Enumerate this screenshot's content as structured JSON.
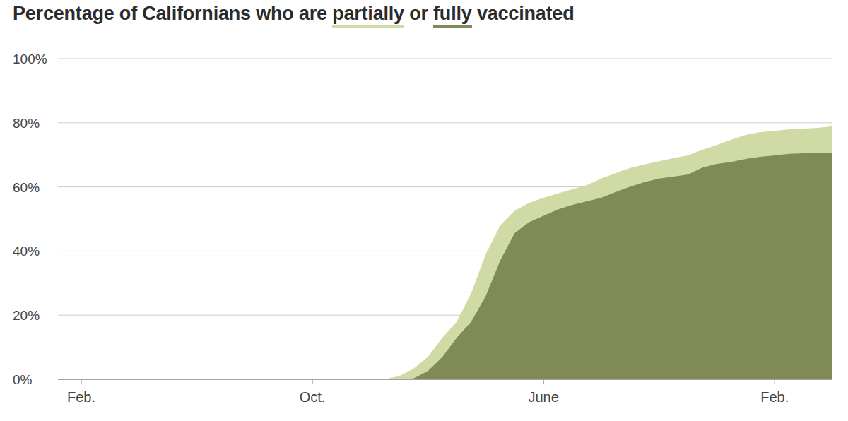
{
  "chart_data": {
    "type": "area",
    "title": "Percentage of Californians who are partially or fully vaccinated",
    "categories": [
      "Feb.",
      null,
      null,
      null,
      null,
      null,
      null,
      null,
      null,
      null,
      null,
      null,
      null,
      null,
      null,
      null,
      "Oct.",
      null,
      null,
      null,
      null,
      null,
      null,
      null,
      null,
      null,
      null,
      null,
      null,
      null,
      null,
      null,
      "June",
      null,
      null,
      null,
      null,
      null,
      null,
      null,
      null,
      null,
      null,
      null,
      null,
      null,
      null,
      null,
      "Feb.",
      null,
      null,
      null,
      null
    ],
    "series": [
      {
        "name": "partially",
        "color": "#d0daa4",
        "values": [
          0,
          0,
          0,
          0,
          0,
          0,
          0,
          0,
          0,
          0,
          0,
          0,
          0,
          0,
          0,
          0,
          0,
          0,
          0,
          0,
          0,
          0,
          1,
          3.3,
          7,
          13,
          18,
          27,
          39,
          48,
          52.6,
          55,
          56.6,
          58,
          59.3,
          60.6,
          62.6,
          64.3,
          65.9,
          67,
          68,
          69,
          69.8,
          71.6,
          73.1,
          74.7,
          76.2,
          77.1,
          77.5,
          78,
          78.2,
          78.4,
          78.9
        ]
      },
      {
        "name": "fully",
        "color": "#7f8a55",
        "values": [
          0,
          0,
          0,
          0,
          0,
          0,
          0,
          0,
          0,
          0,
          0,
          0,
          0,
          0,
          0,
          0,
          0,
          0,
          0,
          0,
          0,
          0,
          0,
          0.3,
          2.6,
          7,
          13,
          18,
          26,
          37,
          45.6,
          49,
          51,
          53,
          54.4,
          55.5,
          56.6,
          58.4,
          60.1,
          61.5,
          62.6,
          63.2,
          63.9,
          66,
          67.2,
          67.8,
          68.7,
          69.4,
          69.8,
          70.3,
          70.5,
          70.5,
          70.7
        ]
      }
    ],
    "ylim": [
      0,
      100
    ],
    "yticks": [
      {
        "value": 0,
        "label": "0%"
      },
      {
        "value": 20,
        "label": "20%"
      },
      {
        "value": 40,
        "label": "40%"
      },
      {
        "value": 60,
        "label": "60%"
      },
      {
        "value": 80,
        "label": "80%"
      },
      {
        "value": 100,
        "label": "100%"
      }
    ],
    "grid": true
  }
}
